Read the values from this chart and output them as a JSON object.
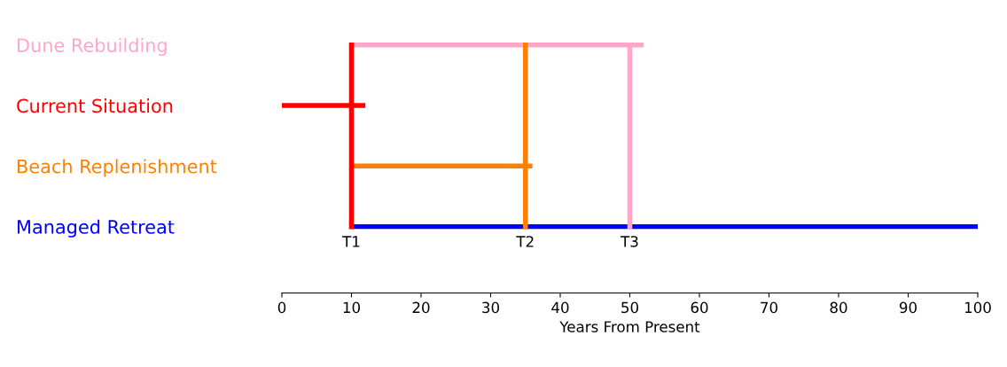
{
  "chart_data": {
    "type": "bar",
    "orientation": "horizontal",
    "categories": [
      "Dune Rebuilding",
      "Current Situation",
      "Beach Replenishment",
      "Managed Retreat"
    ],
    "base": [
      10,
      0,
      10,
      10
    ],
    "values": [
      42,
      12,
      26,
      90
    ],
    "colors": [
      "#ffa6c9",
      "#ff0000",
      "#ff8000",
      "#0000ff"
    ],
    "xlabel": "Years From Present",
    "xlim": [
      0,
      100
    ],
    "xticks": [
      0,
      10,
      20,
      30,
      40,
      50,
      60,
      70,
      80,
      90,
      100
    ],
    "ref_lines": [
      {
        "axis": "x",
        "value": 10,
        "label": "T1",
        "color": "#ff0000"
      },
      {
        "axis": "x",
        "value": 35,
        "label": "T2",
        "color": "#ff8000"
      },
      {
        "axis": "x",
        "value": 50,
        "label": "T3",
        "color": "#ffa6c9"
      }
    ],
    "grid": false,
    "legend": false
  }
}
